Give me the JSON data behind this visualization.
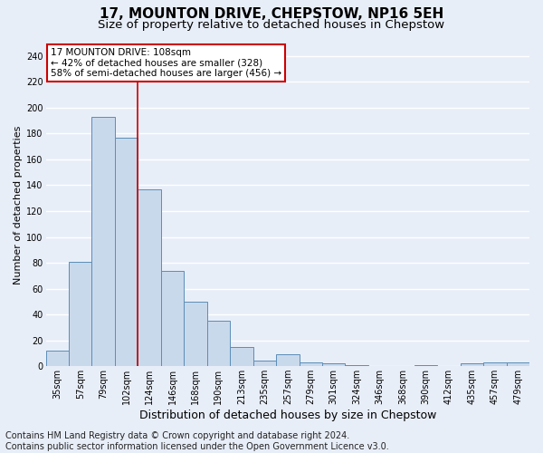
{
  "title": "17, MOUNTON DRIVE, CHEPSTOW, NP16 5EH",
  "subtitle": "Size of property relative to detached houses in Chepstow",
  "xlabel": "Distribution of detached houses by size in Chepstow",
  "ylabel": "Number of detached properties",
  "categories": [
    "35sqm",
    "57sqm",
    "79sqm",
    "102sqm",
    "124sqm",
    "146sqm",
    "168sqm",
    "190sqm",
    "213sqm",
    "235sqm",
    "257sqm",
    "279sqm",
    "301sqm",
    "324sqm",
    "346sqm",
    "368sqm",
    "390sqm",
    "412sqm",
    "435sqm",
    "457sqm",
    "479sqm"
  ],
  "values": [
    12,
    81,
    193,
    177,
    137,
    74,
    50,
    35,
    15,
    4,
    9,
    3,
    2,
    1,
    0,
    0,
    1,
    0,
    2,
    3,
    3
  ],
  "bar_color": "#c9d9ec",
  "bar_edge_color": "#5b8db8",
  "vline_x": 3.5,
  "vline_color": "#cc0000",
  "annotation_line1": "17 MOUNTON DRIVE: 108sqm",
  "annotation_line2": "← 42% of detached houses are smaller (328)",
  "annotation_line3": "58% of semi-detached houses are larger (456) →",
  "ylim": [
    0,
    250
  ],
  "yticks": [
    0,
    20,
    40,
    60,
    80,
    100,
    120,
    140,
    160,
    180,
    200,
    220,
    240
  ],
  "footer_text": "Contains HM Land Registry data © Crown copyright and database right 2024.\nContains public sector information licensed under the Open Government Licence v3.0.",
  "bg_color": "#e8eef8",
  "grid_color": "#ffffff",
  "title_fontsize": 11,
  "subtitle_fontsize": 9.5,
  "xlabel_fontsize": 9,
  "ylabel_fontsize": 8,
  "tick_fontsize": 7,
  "annot_fontsize": 7.5,
  "footer_fontsize": 7
}
